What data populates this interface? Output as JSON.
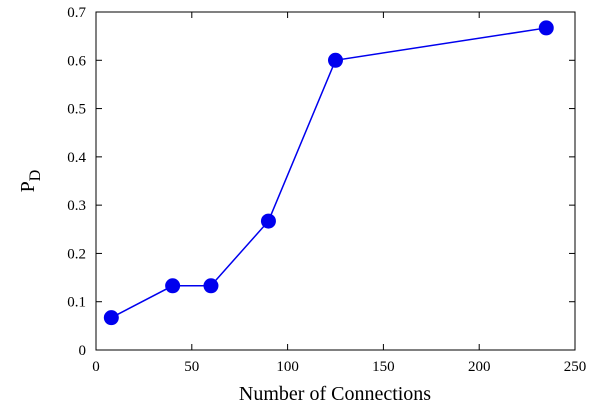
{
  "chart_data": {
    "type": "line",
    "title": "",
    "xlabel": "Number of Connections",
    "ylabel_main": "P",
    "ylabel_sub": "D",
    "xlim": [
      0,
      250
    ],
    "ylim": [
      0,
      0.7
    ],
    "xticks": [
      0,
      50,
      100,
      150,
      200,
      250
    ],
    "yticks": [
      0,
      0.1,
      0.2,
      0.3,
      0.4,
      0.5,
      0.6,
      0.7
    ],
    "xtick_labels": [
      "0",
      "50",
      "100",
      "150",
      "200",
      "250"
    ],
    "ytick_labels": [
      "0",
      "0.1",
      "0.2",
      "0.3",
      "0.4",
      "0.5",
      "0.6",
      "0.7"
    ],
    "grid": false,
    "legend": "none",
    "series": [
      {
        "color": "#0000ee",
        "marker": "circle",
        "x": [
          8,
          40,
          60,
          90,
          125,
          235
        ],
        "y": [
          0.067,
          0.133,
          0.133,
          0.267,
          0.6,
          0.667
        ]
      }
    ]
  }
}
